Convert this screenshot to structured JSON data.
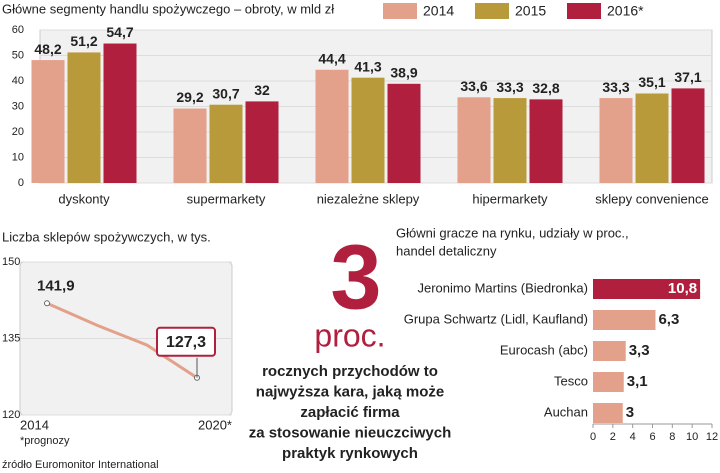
{
  "charts": [
    {
      "type": "bar",
      "title": "Główne segmenty handlu spożywczego – obroty, w mld zł",
      "categories": [
        "dyskonty",
        "supermarkety",
        "niezależne sklepy",
        "hipermarkety",
        "sklepy convenience"
      ],
      "series": [
        {
          "name": "2014",
          "color": "#e3a08a",
          "values": [
            48.2,
            29.2,
            44.4,
            33.6,
            33.3
          ],
          "value_labels": [
            "48,2",
            "29,2",
            "44,4",
            "33,6",
            "33,3"
          ]
        },
        {
          "name": "2015",
          "color": "#b89a3a",
          "values": [
            51.2,
            30.7,
            41.3,
            33.3,
            35.1
          ],
          "value_labels": [
            "51,2",
            "30,7",
            "41,3",
            "33,3",
            "35,1"
          ]
        },
        {
          "name": "2016*",
          "color": "#b0203e",
          "values": [
            54.7,
            32,
            38.9,
            32.8,
            37.1
          ],
          "value_labels": [
            "54,7",
            "32",
            "38,9",
            "32,8",
            "37,1"
          ]
        }
      ],
      "ylim": [
        0,
        60
      ],
      "yticks": [
        0,
        10,
        20,
        30,
        40,
        50,
        60
      ],
      "grid": true
    },
    {
      "type": "line",
      "title": "Liczba sklepów spożywczych, w tys.",
      "categories": [
        "2014",
        null,
        null,
        "2020*"
      ],
      "values": [
        141.9,
        137.6,
        133.7,
        127.3
      ],
      "value_labels": [
        "141,9",
        null,
        null,
        "127,3"
      ],
      "color": "#e3a08a",
      "ylim": [
        120,
        150
      ],
      "yticks": [
        120,
        135,
        150
      ],
      "grid": true,
      "note": "*prognozy"
    },
    {
      "type": "hbar",
      "title": [
        "Główni gracze na rynku, udziały w proc.,",
        "handel detaliczny"
      ],
      "categories": [
        "Jeronimo  Martins (Biedronka)",
        "Grupa Schwartz (Lidl, Kaufland)",
        "Eurocash (abc)",
        "Tesco",
        "Auchan"
      ],
      "values": [
        10.8,
        6.3,
        3.3,
        3.1,
        3
      ],
      "value_labels": [
        "10,8",
        "6,3",
        "3,3",
        "3,1",
        "3"
      ],
      "colors": [
        "#b0203e",
        "#e3a08a",
        "#e3a08a",
        "#e3a08a",
        "#e3a08a"
      ],
      "xlim": [
        0,
        12
      ],
      "xticks": [
        0,
        2,
        4,
        6,
        8,
        10,
        12
      ]
    }
  ],
  "callout": {
    "number": "3",
    "unit": "proc.",
    "lines": [
      "rocznych przychodów to",
      "najwyższa kara, jaką może",
      "zapłacić firma",
      "za stosowanie nieuczciwych",
      "praktyk rynkowych"
    ]
  },
  "source": "źródło Euromonitor International"
}
